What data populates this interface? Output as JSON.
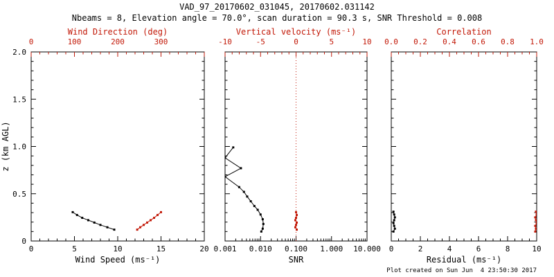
{
  "header": {
    "title": "VAD_97_20170602_031045, 20170602.031142",
    "subtitle": "Nbeams = 8, Elevation angle = 70.0°, scan duration = 90.3 s, SNR Threshold = 0.008"
  },
  "footer": {
    "created": "Plot created on Sun Jun  4 23:50:30 2017"
  },
  "colors": {
    "black": "#000000",
    "red": "#c21807",
    "background": "#ffffff"
  },
  "chart_data": [
    {
      "name": "wind",
      "type": "scatter",
      "y_axis": {
        "label": "z (km AGL)",
        "min": 0,
        "max": 2,
        "ticks": [
          0,
          0.5,
          1.0,
          1.5,
          2.0
        ],
        "tick_labels": [
          "0",
          "0.5",
          "1.0",
          "1.5",
          "2.0"
        ],
        "minor_step": 0.1,
        "show_labels": true
      },
      "bottom_axis": {
        "label": "Wind Speed (ms⁻¹)",
        "scale": "linear",
        "min": 0,
        "max": 20,
        "ticks": [
          0,
          5,
          10,
          15,
          20
        ],
        "tick_labels": [
          "0",
          "5",
          "10",
          "15",
          "20"
        ],
        "minor_step": 1,
        "color": "#000000"
      },
      "top_axis": {
        "label": "Wind Direction (deg)",
        "scale": "linear",
        "min": 0,
        "max": 400,
        "ticks": [
          0,
          100,
          200,
          300,
          400
        ],
        "tick_labels": [
          "0",
          "100",
          "200",
          "300",
          ""
        ],
        "minor_step": 20,
        "color": "#c21807"
      },
      "series": [
        {
          "name": "wind-speed",
          "axis": "bottom",
          "color": "#000000",
          "z": [
            0.12,
            0.145,
            0.17,
            0.195,
            0.22,
            0.245,
            0.275,
            0.305
          ],
          "x": [
            9.6,
            8.8,
            8.0,
            7.3,
            6.6,
            5.9,
            5.3,
            4.8
          ]
        },
        {
          "name": "wind-direction",
          "axis": "top",
          "color": "#c21807",
          "z": [
            0.12,
            0.145,
            0.17,
            0.195,
            0.22,
            0.245,
            0.275,
            0.305
          ],
          "x": [
            245,
            252,
            260,
            268,
            276,
            284,
            292,
            300
          ]
        }
      ]
    },
    {
      "name": "snr",
      "type": "scatter",
      "y_axis": {
        "min": 0,
        "max": 2,
        "ticks": [
          0,
          0.5,
          1.0,
          1.5,
          2.0
        ],
        "tick_labels": [],
        "minor_step": 0.1,
        "show_labels": false
      },
      "bottom_axis": {
        "label": "SNR",
        "scale": "log",
        "min": 0.001,
        "max": 10,
        "ticks": [
          0.001,
          0.01,
          0.1,
          1,
          10
        ],
        "tick_labels": [
          "0.001",
          "0.010",
          "0.100",
          "1.000",
          "10.000"
        ],
        "color": "#000000"
      },
      "top_axis": {
        "label": "Vertical velocity (ms⁻¹)",
        "scale": "linear",
        "min": -10,
        "max": 10,
        "ticks": [
          -10,
          -5,
          0,
          5,
          10
        ],
        "tick_labels": [
          "-10",
          "-5",
          "0",
          "5",
          "10"
        ],
        "minor_step": 1,
        "color": "#c21807"
      },
      "zero_line": {
        "axis": "top",
        "value": 0,
        "color": "#c21807",
        "style": "dotted"
      },
      "series": [
        {
          "name": "snr-profile",
          "axis": "bottom",
          "color": "#000000",
          "z": [
            0.99,
            0.88,
            0.77,
            0.68,
            0.57,
            0.52,
            0.47,
            0.42,
            0.37,
            0.33,
            0.28,
            0.23,
            0.18,
            0.13,
            0.1
          ],
          "x": [
            0.0017,
            0.001,
            0.0028,
            0.001,
            0.0025,
            0.0034,
            0.0042,
            0.0053,
            0.0067,
            0.0083,
            0.01,
            0.0115,
            0.012,
            0.0115,
            0.0105
          ]
        },
        {
          "name": "vertical-velocity",
          "axis": "top",
          "color": "#c21807",
          "z": [
            0.12,
            0.145,
            0.17,
            0.195,
            0.22,
            0.245,
            0.275,
            0.305
          ],
          "x": [
            0.1,
            -0.1,
            0.0,
            0.1,
            -0.1,
            0.0,
            0.1,
            0.0
          ]
        }
      ]
    },
    {
      "name": "residual",
      "type": "scatter",
      "y_axis": {
        "min": 0,
        "max": 2,
        "ticks": [
          0,
          0.5,
          1.0,
          1.5,
          2.0
        ],
        "tick_labels": [],
        "minor_step": 0.1,
        "show_labels": false
      },
      "bottom_axis": {
        "label": "Residual (ms⁻¹)",
        "scale": "linear",
        "min": 0,
        "max": 10,
        "ticks": [
          0,
          2,
          4,
          6,
          8,
          10
        ],
        "tick_labels": [
          "0",
          "2",
          "4",
          "6",
          "8",
          "10"
        ],
        "minor_step": 0.5,
        "color": "#000000"
      },
      "top_axis": {
        "label": "Correlation",
        "scale": "linear",
        "min": 0,
        "max": 1,
        "ticks": [
          0,
          0.2,
          0.4,
          0.6,
          0.8,
          1.0
        ],
        "tick_labels": [
          "0.0",
          "0.2",
          "0.4",
          "0.6",
          "0.8",
          "1.0"
        ],
        "minor_step": 0.05,
        "color": "#c21807"
      },
      "series": [
        {
          "name": "residual-profile",
          "axis": "bottom",
          "color": "#000000",
          "z": [
            0.1,
            0.13,
            0.16,
            0.19,
            0.22,
            0.25,
            0.28,
            0.31
          ],
          "x": [
            0.15,
            0.25,
            0.2,
            0.15,
            0.2,
            0.25,
            0.2,
            0.15
          ]
        },
        {
          "name": "correlation-profile",
          "axis": "top",
          "color": "#c21807",
          "z": [
            0.1,
            0.13,
            0.16,
            0.19,
            0.22,
            0.25,
            0.28,
            0.31
          ],
          "x": [
            0.99,
            0.995,
            0.99,
            1.0,
            0.995,
            0.99,
            1.0,
            0.995
          ]
        }
      ]
    }
  ]
}
